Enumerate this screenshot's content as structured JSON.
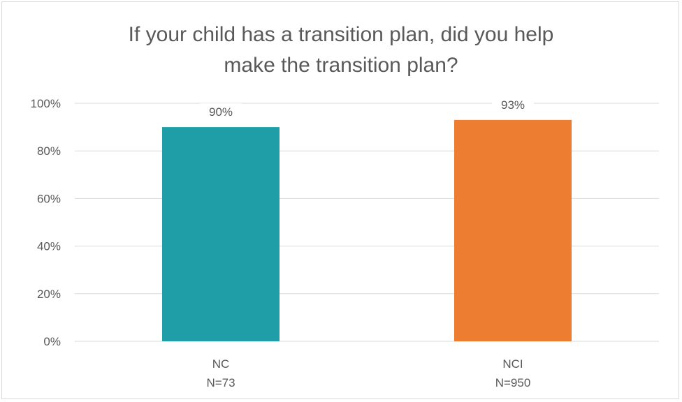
{
  "chart_data": {
    "type": "bar",
    "title_lines": [
      "If your child has a transition plan, did you help",
      "make the transition plan?"
    ],
    "categories": [
      {
        "name": "NC",
        "n_label": "N=73"
      },
      {
        "name": "NCI",
        "n_label": "N=950"
      }
    ],
    "values": [
      90,
      93
    ],
    "value_labels": [
      "90%",
      "93%"
    ],
    "bar_colors": [
      "#1f9ea7",
      "#ed7d31"
    ],
    "ylim": [
      0,
      100
    ],
    "yticks": [
      0,
      20,
      40,
      60,
      80,
      100
    ],
    "ytick_labels": [
      "0%",
      "20%",
      "40%",
      "60%",
      "80%",
      "100%"
    ],
    "grid": true,
    "gridline_color": "#d9d9d9",
    "text_color": "#595959"
  }
}
